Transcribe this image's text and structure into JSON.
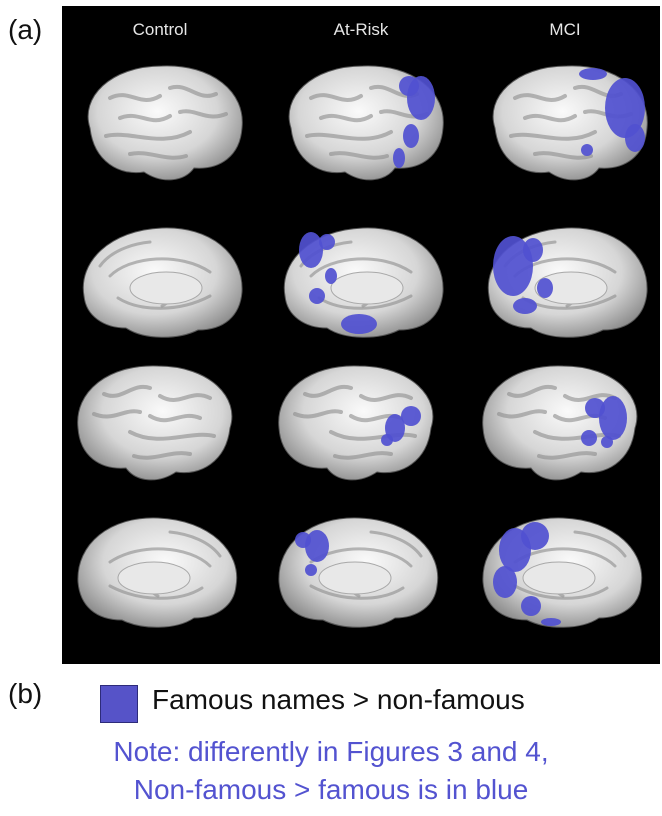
{
  "panel_labels": {
    "a": "(a)",
    "b": "(b)"
  },
  "columns": [
    "Control",
    "At-Risk",
    "MCI"
  ],
  "rows": [
    "lateral-left",
    "medial-left",
    "lateral-right",
    "medial-right"
  ],
  "legend": {
    "swatch_color": "#5653c8",
    "label": "Famous names > non-famous"
  },
  "note": {
    "line1": "Note: differently in Figures 3 and 4,",
    "line2": "Non-famous > famous is in blue",
    "color": "#5353d0"
  },
  "activation_color": "#5050d0"
}
